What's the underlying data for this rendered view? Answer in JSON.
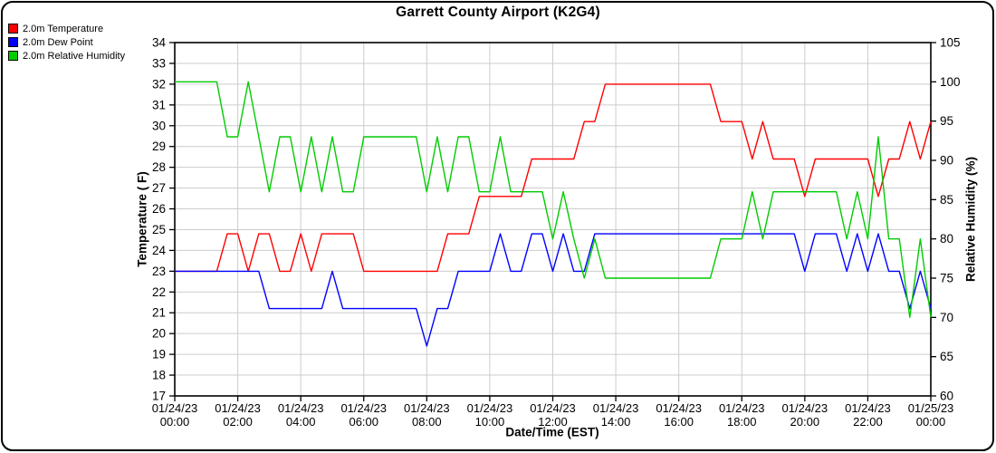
{
  "chart_data": {
    "type": "line",
    "title": "Garrett County Airport (K2G4)",
    "xlabel": "Date/Time (EST)",
    "ylabel_left": "Temperature ( F)",
    "ylabel_right": "Relative Humidity (%)",
    "ylim_left": [
      17,
      34
    ],
    "ytick_step_left": 1,
    "ylim_right": [
      60,
      105
    ],
    "ytick_step_right": 5,
    "grid": true,
    "legend_position": "top-left",
    "x_start": "01/24/23 00:00",
    "x_end": "01/25/23 00:00",
    "sample_interval_minutes": 20,
    "x_ticks": [
      {
        "date": "01/24/23",
        "time": "00:00"
      },
      {
        "date": "01/24/23",
        "time": "02:00"
      },
      {
        "date": "01/24/23",
        "time": "04:00"
      },
      {
        "date": "01/24/23",
        "time": "06:00"
      },
      {
        "date": "01/24/23",
        "time": "08:00"
      },
      {
        "date": "01/24/23",
        "time": "10:00"
      },
      {
        "date": "01/24/23",
        "time": "12:00"
      },
      {
        "date": "01/24/23",
        "time": "14:00"
      },
      {
        "date": "01/24/23",
        "time": "16:00"
      },
      {
        "date": "01/24/23",
        "time": "18:00"
      },
      {
        "date": "01/24/23",
        "time": "20:00"
      },
      {
        "date": "01/24/23",
        "time": "22:00"
      },
      {
        "date": "01/25/23",
        "time": "00:00"
      }
    ],
    "series": [
      {
        "name": "2.0m Temperature",
        "axis": "left",
        "color": "#ff0000",
        "values": [
          23,
          23,
          23,
          23,
          23,
          24.8,
          24.8,
          23,
          24.8,
          24.8,
          23,
          23,
          24.8,
          23,
          24.8,
          24.8,
          24.8,
          24.8,
          23,
          23,
          23,
          23,
          23,
          23,
          23,
          23,
          24.8,
          24.8,
          24.8,
          26.6,
          26.6,
          26.6,
          26.6,
          26.6,
          28.4,
          28.4,
          28.4,
          28.4,
          28.4,
          30.2,
          30.2,
          32,
          32,
          32,
          32,
          32,
          32,
          32,
          32,
          32,
          32,
          32,
          30.2,
          30.2,
          30.2,
          28.4,
          30.2,
          28.4,
          28.4,
          28.4,
          26.6,
          28.4,
          28.4,
          28.4,
          28.4,
          28.4,
          28.4,
          26.6,
          28.4,
          28.4,
          30.2,
          28.4,
          30.2
        ]
      },
      {
        "name": "2.0m Dew Point",
        "axis": "left",
        "color": "#0000ff",
        "values": [
          23,
          23,
          23,
          23,
          23,
          23,
          23,
          23,
          23,
          21.2,
          21.2,
          21.2,
          21.2,
          21.2,
          21.2,
          23,
          21.2,
          21.2,
          21.2,
          21.2,
          21.2,
          21.2,
          21.2,
          21.2,
          19.4,
          21.2,
          21.2,
          23,
          23,
          23,
          23,
          24.8,
          23,
          23,
          24.8,
          24.8,
          23,
          24.8,
          23,
          23,
          24.8,
          24.8,
          24.8,
          24.8,
          24.8,
          24.8,
          24.8,
          24.8,
          24.8,
          24.8,
          24.8,
          24.8,
          24.8,
          24.8,
          24.8,
          24.8,
          24.8,
          24.8,
          24.8,
          24.8,
          23,
          24.8,
          24.8,
          24.8,
          23,
          24.8,
          23,
          24.8,
          23,
          23,
          21.2,
          23,
          21.2
        ]
      },
      {
        "name": "2.0m Relative Humidity",
        "axis": "right",
        "color": "#00cc00",
        "values": [
          100,
          100,
          100,
          100,
          100,
          93,
          93,
          100,
          93,
          86,
          93,
          93,
          86,
          93,
          86,
          93,
          86,
          86,
          93,
          93,
          93,
          93,
          93,
          93,
          86,
          93,
          86,
          93,
          93,
          86,
          86,
          93,
          86,
          86,
          86,
          86,
          80,
          86,
          80,
          75,
          80,
          75,
          75,
          75,
          75,
          75,
          75,
          75,
          75,
          75,
          75,
          75,
          80,
          80,
          80,
          86,
          80,
          86,
          86,
          86,
          86,
          86,
          86,
          86,
          80,
          86,
          80,
          93,
          80,
          80,
          70,
          80,
          70
        ]
      }
    ]
  }
}
